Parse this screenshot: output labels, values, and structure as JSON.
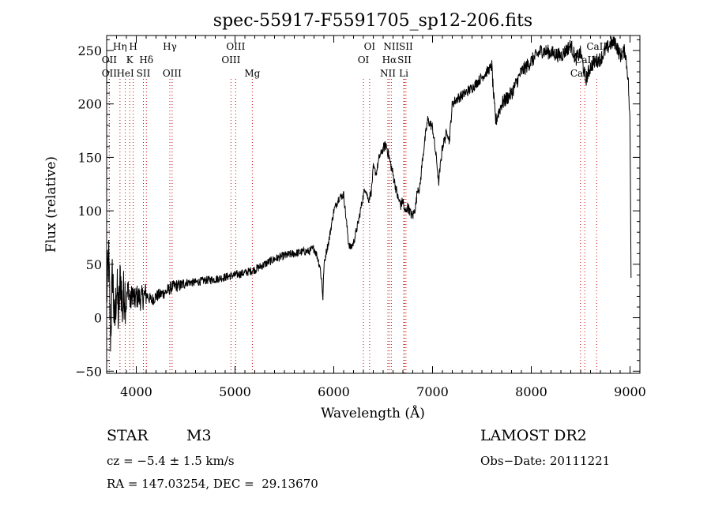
{
  "chart_data": {
    "type": "line",
    "title": "spec-55917-F5591705_sp12-206.fits",
    "xlabel": "Wavelength (Å)",
    "ylabel": "Flux (relative)",
    "xlim": [
      3700,
      9100
    ],
    "ylim": [
      -52,
      264
    ],
    "xticks": [
      4000,
      5000,
      6000,
      7000,
      8000,
      9000
    ],
    "yticks": [
      -50,
      0,
      50,
      100,
      150,
      200,
      250
    ],
    "line_color": "#000000",
    "marker_color": "#cc0000",
    "spectrum": {
      "x": [
        3700,
        3720,
        3740,
        3760,
        3780,
        3800,
        3820,
        3840,
        3860,
        3880,
        3900,
        3920,
        3940,
        3960,
        3980,
        4000,
        4050,
        4100,
        4150,
        4200,
        4250,
        4300,
        4350,
        4400,
        4450,
        4500,
        4600,
        4700,
        4800,
        4900,
        5000,
        5100,
        5200,
        5300,
        5400,
        5500,
        5600,
        5700,
        5750,
        5800,
        5830,
        5860,
        5880,
        5890,
        5900,
        5920,
        5950,
        6000,
        6050,
        6100,
        6150,
        6170,
        6200,
        6250,
        6300,
        6320,
        6350,
        6380,
        6400,
        6430,
        6460,
        6500,
        6530,
        6560,
        6590,
        6620,
        6650,
        6680,
        6700,
        6720,
        6750,
        6780,
        6800,
        6830,
        6850,
        6870,
        6900,
        6950,
        7000,
        7050,
        7060,
        7100,
        7150,
        7170,
        7200,
        7250,
        7300,
        7400,
        7500,
        7600,
        7620,
        7640,
        7660,
        7680,
        7700,
        7800,
        7900,
        8000,
        8100,
        8200,
        8300,
        8400,
        8450,
        8500,
        8550,
        8600,
        8650,
        8700,
        8750,
        8800,
        8850,
        8900,
        8950,
        8980,
        9000,
        9010
      ],
      "y": [
        20,
        55,
        -18,
        45,
        -12,
        32,
        0,
        40,
        8,
        28,
        14,
        30,
        12,
        25,
        15,
        20,
        18,
        22,
        16,
        20,
        22,
        24,
        28,
        30,
        30,
        33,
        33,
        35,
        36,
        38,
        40,
        42,
        45,
        50,
        55,
        58,
        60,
        62,
        62,
        65,
        58,
        48,
        32,
        18,
        48,
        60,
        72,
        100,
        112,
        115,
        70,
        65,
        70,
        90,
        115,
        122,
        110,
        118,
        140,
        135,
        150,
        158,
        162,
        150,
        138,
        125,
        112,
        105,
        110,
        98,
        104,
        97,
        95,
        105,
        122,
        120,
        150,
        185,
        178,
        140,
        125,
        160,
        175,
        165,
        200,
        205,
        208,
        215,
        225,
        235,
        205,
        183,
        190,
        195,
        200,
        210,
        230,
        240,
        250,
        248,
        245,
        255,
        242,
        248,
        222,
        235,
        240,
        242,
        250,
        256,
        258,
        245,
        250,
        225,
        180,
        40
      ]
    },
    "lines": [
      {
        "name": "OII",
        "wavelength": 3727,
        "row": 2
      },
      {
        "name": "OII",
        "wavelength": 3727,
        "row": 3
      },
      {
        "name": "Hη",
        "wavelength": 3835,
        "row": 1
      },
      {
        "name": "HeI",
        "wavelength": 3889,
        "row": 3
      },
      {
        "name": "K",
        "wavelength": 3934,
        "row": 2
      },
      {
        "name": "H",
        "wavelength": 3969,
        "row": 1
      },
      {
        "name": "SII",
        "wavelength": 4072,
        "row": 3
      },
      {
        "name": "Hδ",
        "wavelength": 4102,
        "row": 2
      },
      {
        "name": "Hγ",
        "wavelength": 4340,
        "row": 1
      },
      {
        "name": "OIII",
        "wavelength": 4363,
        "row": 3
      },
      {
        "name": "OIII",
        "wavelength": 4959,
        "row": 2
      },
      {
        "name": "OIII",
        "wavelength": 5007,
        "row": 1
      },
      {
        "name": "Mg",
        "wavelength": 5175,
        "row": 3
      },
      {
        "name": "OI",
        "wavelength": 6300,
        "row": 2
      },
      {
        "name": "OI",
        "wavelength": 6363,
        "row": 1
      },
      {
        "name": "NII",
        "wavelength": 6548,
        "row": 3
      },
      {
        "name": "Hα",
        "wavelength": 6563,
        "row": 2
      },
      {
        "name": "NII",
        "wavelength": 6583,
        "row": 1
      },
      {
        "name": "Li",
        "wavelength": 6708,
        "row": 3
      },
      {
        "name": "SII",
        "wavelength": 6716,
        "row": 2
      },
      {
        "name": "SII",
        "wavelength": 6731,
        "row": 1
      },
      {
        "name": "CaII",
        "wavelength": 8498,
        "row": 3
      },
      {
        "name": "CaII",
        "wavelength": 8542,
        "row": 2
      },
      {
        "name": "CaII",
        "wavelength": 8662,
        "row": 1
      }
    ]
  },
  "info": {
    "object_class": "STAR",
    "subclass": "M3",
    "survey": "LAMOST DR2",
    "redshift": "cz = −5.4 ± 1.5 km/s",
    "obs_date": "Obs−Date: 20111221",
    "coords": "RA = 147.03254, DEC =  29.13670"
  }
}
